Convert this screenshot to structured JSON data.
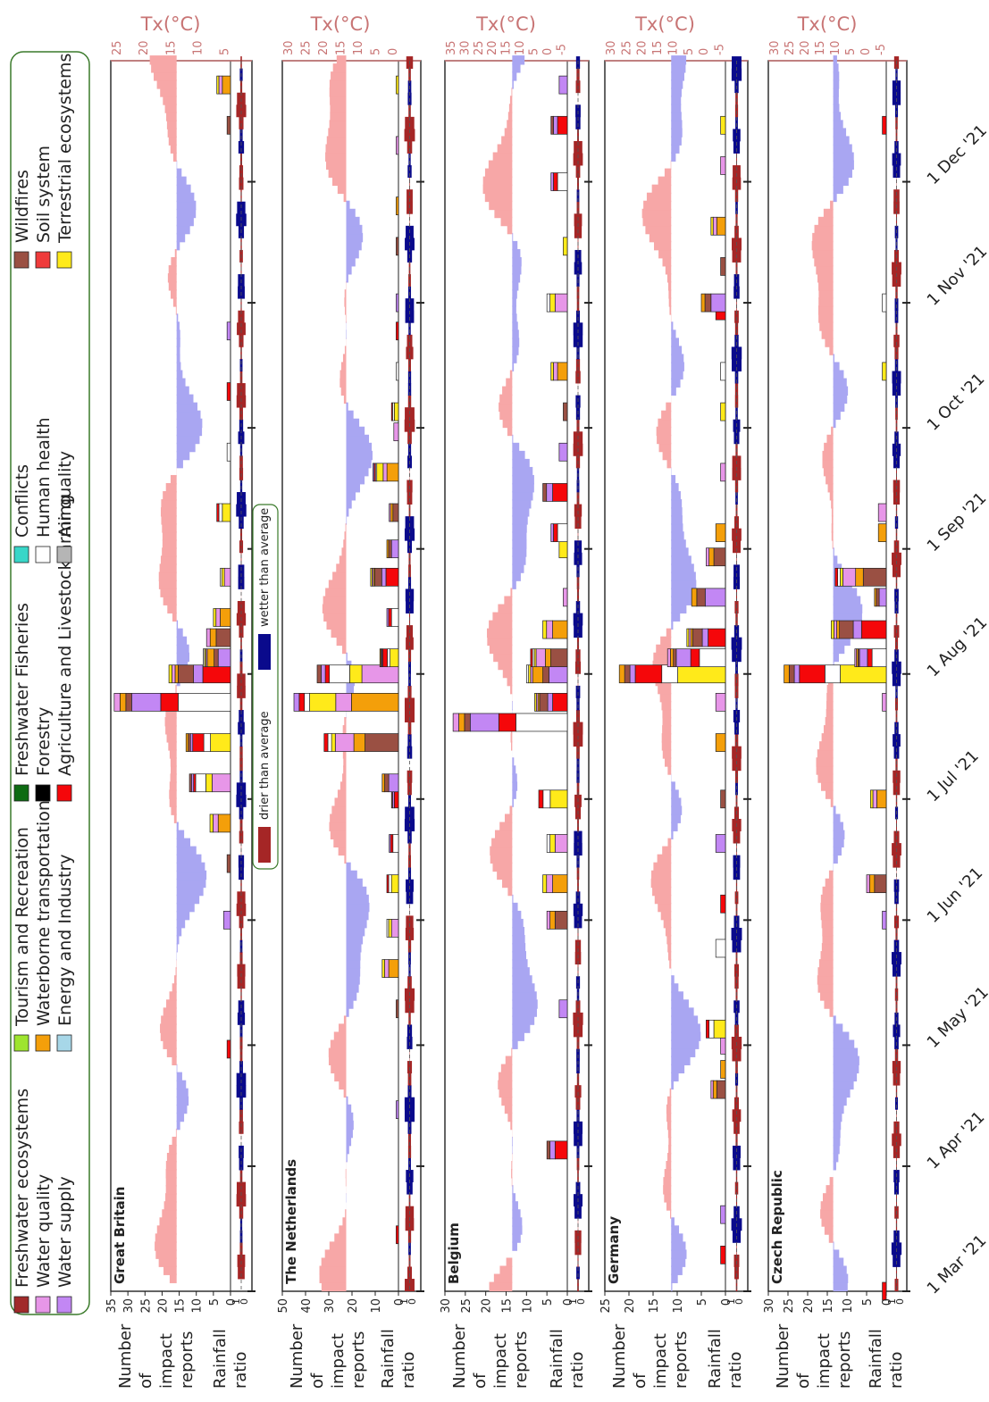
{
  "legend": {
    "items": [
      {
        "label": "Freshwater ecosystems",
        "color": "#a12a2a"
      },
      {
        "label": "Water quality",
        "color": "#e796e8"
      },
      {
        "label": "Water supply",
        "color": "#c287f4"
      },
      {
        "label": "Tourism and Recreation",
        "color": "#9ee52e"
      },
      {
        "label": "Waterborne transportation",
        "color": "#f49f0a"
      },
      {
        "label": "Energy and Industry",
        "color": "#a7d7e8"
      },
      {
        "label": "Freshwater Fisheries",
        "color": "#0d6b12"
      },
      {
        "label": "Forestry",
        "color": "#000000"
      },
      {
        "label": "Agriculture and Livestockfarming",
        "color": "#f5070a"
      },
      {
        "label": "Conflicts",
        "color": "#38d6c8"
      },
      {
        "label": "Human health",
        "color": "#ffffff"
      },
      {
        "label": "Air quality",
        "color": "#b5b5b5"
      },
      {
        "label": "Wildfires",
        "color": "#9a5043"
      },
      {
        "label": "Soil system",
        "color": "#ef3b3b"
      },
      {
        "label": "Terrestrial ecosystems",
        "color": "#ffea1a"
      }
    ]
  },
  "rain_legend": {
    "drier": "drier than average",
    "wetter": "wetter than average",
    "drier_color": "#a52626",
    "wetter_color": "#0a0a8c"
  },
  "temp_colors": {
    "warm": "#f7a7a7",
    "cold": "#a9a6f2",
    "axis": "#c87474"
  },
  "y_labels": {
    "impact": [
      "Number",
      "of",
      "impact",
      "reports"
    ],
    "rain": [
      "Rainfall",
      "ratio"
    ]
  },
  "temp_axis_label": "Tx(°C)",
  "dates": [
    "1 Mar '21",
    "1 Apr '21",
    "1 May '21",
    "1 Jun '21",
    "1 Jul '21",
    "1 Aug '21",
    "1 Sep '21",
    "1 Oct '21",
    "1 Nov '21",
    "1 Dec '21"
  ],
  "rain_ticks": [
    "1",
    "0"
  ],
  "chart_data": [
    {
      "type": "bar",
      "country": "Great Britain",
      "impact_ticks": [
        "35",
        "30",
        "25",
        "20",
        "15",
        "10",
        "5",
        "0"
      ],
      "impact_max": 35,
      "temp_ticks": [
        "25",
        "20",
        "15",
        "10",
        "5"
      ],
      "temp_range": [
        5,
        25
      ],
      "impact_reports": [
        {
          "date": "2021-04-30",
          "total": 1
        },
        {
          "date": "2021-06-01",
          "total": 2
        },
        {
          "date": "2021-06-15",
          "total": 1
        },
        {
          "date": "2021-06-25",
          "total": 6
        },
        {
          "date": "2021-07-05",
          "total": 12
        },
        {
          "date": "2021-07-15",
          "total": 13
        },
        {
          "date": "2021-07-25",
          "total": 34
        },
        {
          "date": "2021-08-01",
          "total": 18
        },
        {
          "date": "2021-08-05",
          "total": 8
        },
        {
          "date": "2021-08-10",
          "total": 7
        },
        {
          "date": "2021-08-15",
          "total": 5
        },
        {
          "date": "2021-08-25",
          "total": 3
        },
        {
          "date": "2021-09-10",
          "total": 4
        },
        {
          "date": "2021-09-25",
          "total": 1
        },
        {
          "date": "2021-10-10",
          "total": 1
        },
        {
          "date": "2021-10-25",
          "total": 1
        },
        {
          "date": "2021-12-15",
          "total": 1
        },
        {
          "date": "2021-12-25",
          "total": 4
        }
      ]
    },
    {
      "type": "bar",
      "country": "The Netherlands",
      "impact_ticks": [
        "50",
        "40",
        "30",
        "20",
        "10",
        "0"
      ],
      "impact_max": 50,
      "temp_ticks": [
        "30",
        "25",
        "20",
        "15",
        "10",
        "5",
        "0"
      ],
      "temp_range": [
        0,
        30
      ],
      "impact_reports": [
        {
          "date": "2021-03-15",
          "total": 1
        },
        {
          "date": "2021-04-15",
          "total": 1
        },
        {
          "date": "2021-05-10",
          "total": 1
        },
        {
          "date": "2021-05-20",
          "total": 7
        },
        {
          "date": "2021-05-30",
          "total": 5
        },
        {
          "date": "2021-06-10",
          "total": 5
        },
        {
          "date": "2021-06-20",
          "total": 4
        },
        {
          "date": "2021-07-01",
          "total": 3
        },
        {
          "date": "2021-07-05",
          "total": 7
        },
        {
          "date": "2021-07-15",
          "total": 32
        },
        {
          "date": "2021-07-25",
          "total": 45
        },
        {
          "date": "2021-08-01",
          "total": 35
        },
        {
          "date": "2021-08-05",
          "total": 8
        },
        {
          "date": "2021-08-15",
          "total": 5
        },
        {
          "date": "2021-08-25",
          "total": 12
        },
        {
          "date": "2021-09-01",
          "total": 5
        },
        {
          "date": "2021-09-10",
          "total": 4
        },
        {
          "date": "2021-09-20",
          "total": 11
        },
        {
          "date": "2021-09-30",
          "total": 2
        },
        {
          "date": "2021-10-05",
          "total": 3
        },
        {
          "date": "2021-10-15",
          "total": 1
        },
        {
          "date": "2021-10-25",
          "total": 1
        },
        {
          "date": "2021-11-01",
          "total": 1
        },
        {
          "date": "2021-11-15",
          "total": 1
        },
        {
          "date": "2021-11-25",
          "total": 1
        },
        {
          "date": "2021-12-10",
          "total": 1
        },
        {
          "date": "2021-12-25",
          "total": 1
        }
      ]
    },
    {
      "type": "bar",
      "country": "Belgium",
      "impact_ticks": [
        "30",
        "25",
        "20",
        "15",
        "10",
        "5",
        "0"
      ],
      "impact_max": 30,
      "temp_ticks": [
        "35",
        "30",
        "25",
        "20",
        "15",
        "10",
        "5",
        "0",
        "-5"
      ],
      "temp_range": [
        -5,
        35
      ],
      "impact_reports": [
        {
          "date": "2021-04-05",
          "total": 5
        },
        {
          "date": "2021-05-10",
          "total": 2
        },
        {
          "date": "2021-06-01",
          "total": 5
        },
        {
          "date": "2021-06-10",
          "total": 6
        },
        {
          "date": "2021-06-20",
          "total": 5
        },
        {
          "date": "2021-07-01",
          "total": 7
        },
        {
          "date": "2021-07-20",
          "total": 28
        },
        {
          "date": "2021-07-25",
          "total": 8
        },
        {
          "date": "2021-08-01",
          "total": 10
        },
        {
          "date": "2021-08-05",
          "total": 9
        },
        {
          "date": "2021-08-12",
          "total": 6
        },
        {
          "date": "2021-08-20",
          "total": 1
        },
        {
          "date": "2021-09-01",
          "total": 2
        },
        {
          "date": "2021-09-05",
          "total": 4
        },
        {
          "date": "2021-09-15",
          "total": 6
        },
        {
          "date": "2021-09-25",
          "total": 2
        },
        {
          "date": "2021-10-05",
          "total": 1
        },
        {
          "date": "2021-10-15",
          "total": 4
        },
        {
          "date": "2021-11-01",
          "total": 5
        },
        {
          "date": "2021-11-15",
          "total": 1
        },
        {
          "date": "2021-12-01",
          "total": 4
        },
        {
          "date": "2021-12-15",
          "total": 4
        },
        {
          "date": "2021-12-25",
          "total": 2
        }
      ]
    },
    {
      "type": "bar",
      "country": "Germany",
      "impact_ticks": [
        "25",
        "20",
        "15",
        "10",
        "5",
        "0"
      ],
      "impact_max": 25,
      "temp_ticks": [
        "30",
        "25",
        "20",
        "15",
        "10",
        "5",
        "0",
        "-5"
      ],
      "temp_range": [
        -5,
        30
      ],
      "impact_reports": [
        {
          "date": "2021-03-10",
          "total": 1
        },
        {
          "date": "2021-03-20",
          "total": 1
        },
        {
          "date": "2021-04-20",
          "total": 3
        },
        {
          "date": "2021-04-25",
          "total": 1
        },
        {
          "date": "2021-05-01",
          "total": 1
        },
        {
          "date": "2021-05-05",
          "total": 4
        },
        {
          "date": "2021-05-25",
          "total": 2
        },
        {
          "date": "2021-06-05",
          "total": 1
        },
        {
          "date": "2021-06-20",
          "total": 2
        },
        {
          "date": "2021-07-01",
          "total": 1
        },
        {
          "date": "2021-07-15",
          "total": 2
        },
        {
          "date": "2021-07-25",
          "total": 2
        },
        {
          "date": "2021-08-01",
          "total": 22
        },
        {
          "date": "2021-08-05",
          "total": 12
        },
        {
          "date": "2021-08-10",
          "total": 8
        },
        {
          "date": "2021-08-20",
          "total": 7
        },
        {
          "date": "2021-08-30",
          "total": 4
        },
        {
          "date": "2021-09-05",
          "total": 2
        },
        {
          "date": "2021-09-20",
          "total": 1
        },
        {
          "date": "2021-10-05",
          "total": 1
        },
        {
          "date": "2021-10-15",
          "total": 1
        },
        {
          "date": "2021-10-30",
          "total": 2
        },
        {
          "date": "2021-11-01",
          "total": 5
        },
        {
          "date": "2021-11-10",
          "total": 1
        },
        {
          "date": "2021-11-20",
          "total": 3
        },
        {
          "date": "2021-12-05",
          "total": 1
        },
        {
          "date": "2021-12-15",
          "total": 1
        }
      ]
    },
    {
      "type": "bar",
      "country": "Czech Republic",
      "impact_ticks": [
        "30",
        "25",
        "20",
        "15",
        "10",
        "5",
        "0"
      ],
      "impact_max": 30,
      "temp_ticks": [
        "30",
        "25",
        "20",
        "15",
        "10",
        "5",
        "0",
        "-5"
      ],
      "temp_range": [
        -5,
        30
      ],
      "impact_reports": [
        {
          "date": "2021-03-01",
          "total": 1
        },
        {
          "date": "2021-06-01",
          "total": 1
        },
        {
          "date": "2021-06-10",
          "total": 5
        },
        {
          "date": "2021-07-01",
          "total": 4
        },
        {
          "date": "2021-07-25",
          "total": 1
        },
        {
          "date": "2021-08-01",
          "total": 26
        },
        {
          "date": "2021-08-05",
          "total": 8
        },
        {
          "date": "2021-08-12",
          "total": 14
        },
        {
          "date": "2021-08-20",
          "total": 3
        },
        {
          "date": "2021-08-25",
          "total": 13
        },
        {
          "date": "2021-09-05",
          "total": 2
        },
        {
          "date": "2021-09-10",
          "total": 2
        },
        {
          "date": "2021-10-15",
          "total": 1
        },
        {
          "date": "2021-11-01",
          "total": 1
        },
        {
          "date": "2021-12-15",
          "total": 1
        }
      ]
    }
  ]
}
